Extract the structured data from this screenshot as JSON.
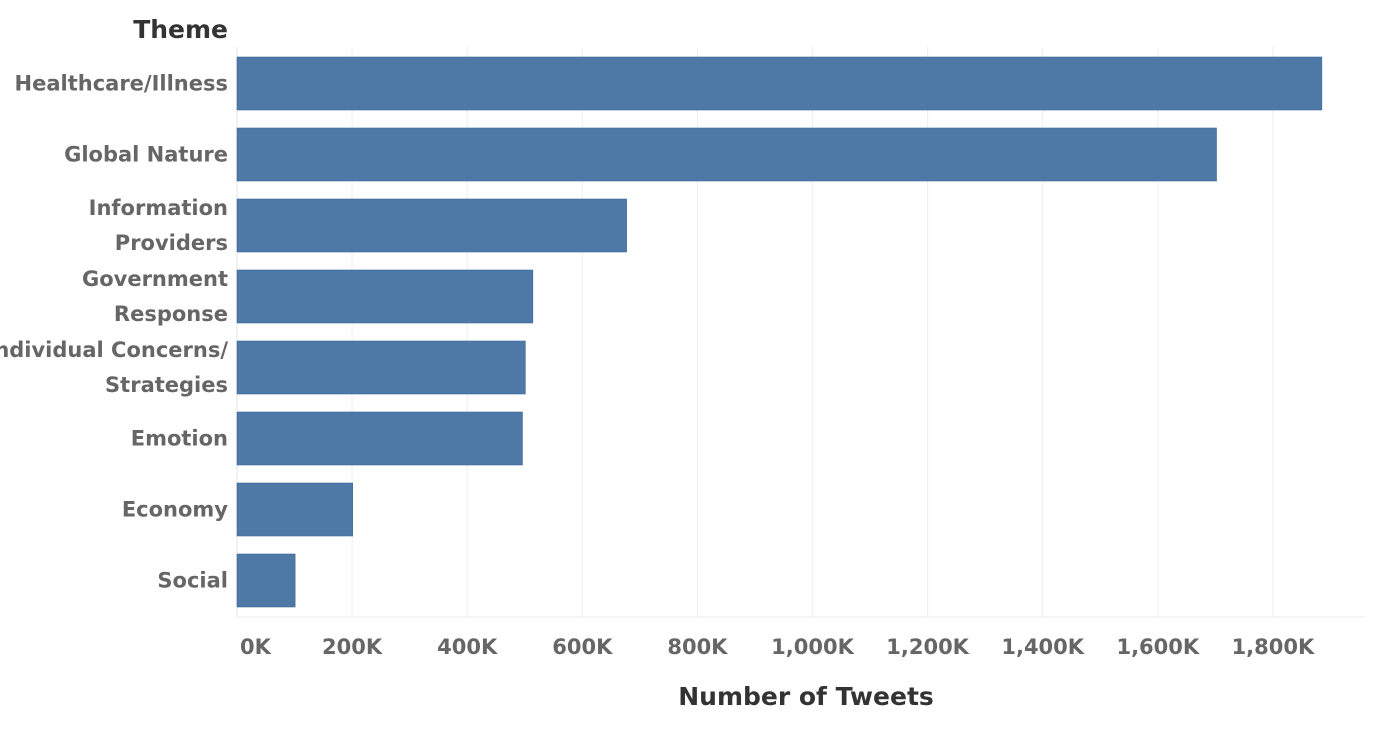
{
  "chart_data": {
    "type": "bar",
    "orientation": "horizontal",
    "dimension_title": "Theme",
    "xlabel": "Number of Tweets",
    "categories": [
      [
        "Healthcare/Illness"
      ],
      [
        "Global Nature"
      ],
      [
        "Information",
        "Providers"
      ],
      [
        "Government",
        "Response"
      ],
      [
        "Individual Concerns/",
        "Strategies"
      ],
      [
        "Emotion"
      ],
      [
        "Economy"
      ],
      [
        "Social"
      ]
    ],
    "values": [
      1885000,
      1702000,
      677000,
      514000,
      501000,
      496000,
      201000,
      101000
    ],
    "xlim": [
      0,
      1960000
    ],
    "x_ticks": [
      0,
      200000,
      400000,
      600000,
      800000,
      1000000,
      1200000,
      1400000,
      1600000,
      1800000
    ],
    "x_tick_labels": [
      "0K",
      "200K",
      "400K",
      "600K",
      "800K",
      "1,000K",
      "1,200K",
      "1,400K",
      "1,600K",
      "1,800K"
    ],
    "grid": "vertical",
    "bar_color": "#4e79a7",
    "grid_color": "#eeeeee"
  }
}
